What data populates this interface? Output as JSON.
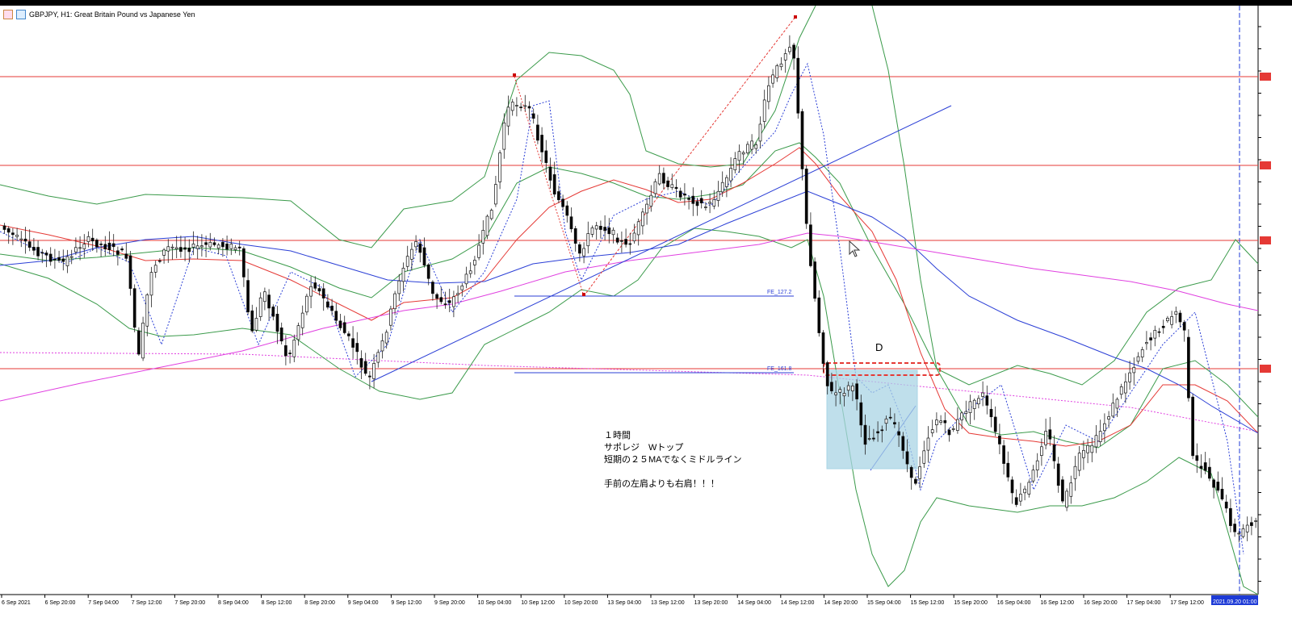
{
  "window": {
    "title": "GBPJPY, H1:  Great Britain Pound vs Japanese Yen"
  },
  "icons": [
    "chart-icon",
    "indicator-icon"
  ],
  "annotations": {
    "fibo_upper": "FE_127.2",
    "fibo_lower": "FE_161.8",
    "point_d": "D",
    "note_lines": [
      "１時間",
      "サポレジ　Wトップ",
      "短期の２５MAでなくミドルライン",
      "",
      "手前の左肩よりも右肩！！！"
    ]
  },
  "time_axis": {
    "labels": [
      "6 Sep 2021",
      "6 Sep 20:00",
      "7 Sep 04:00",
      "7 Sep 12:00",
      "7 Sep 20:00",
      "8 Sep 04:00",
      "8 Sep 12:00",
      "8 Sep 20:00",
      "9 Sep 04:00",
      "9 Sep 12:00",
      "9 Sep 20:00",
      "10 Sep 04:00",
      "10 Sep 12:00",
      "10 Sep 20:00",
      "13 Sep 04:00",
      "13 Sep 12:00",
      "13 Sep 20:00",
      "14 Sep 04:00",
      "14 Sep 12:00",
      "14 Sep 20:00",
      "15 Sep 04:00",
      "15 Sep 12:00",
      "15 Sep 20:00",
      "16 Sep 04:00",
      "16 Sep 12:00",
      "16 Sep 20:00",
      "17 Sep 04:00",
      "17 Sep 12:00"
    ],
    "current_time": "2021.09.20 01:00"
  },
  "colors": {
    "support_resistance": "#e53935",
    "bollinger": "#3a9a4a",
    "ma_short": "#e53935",
    "ma_mid": "#2b3fd6",
    "ma_long": "#e040e0",
    "trendline": "#2b3fd6",
    "zone_fill": "#a9d4e4",
    "axis_highlight": "#1d3ad6"
  }
}
